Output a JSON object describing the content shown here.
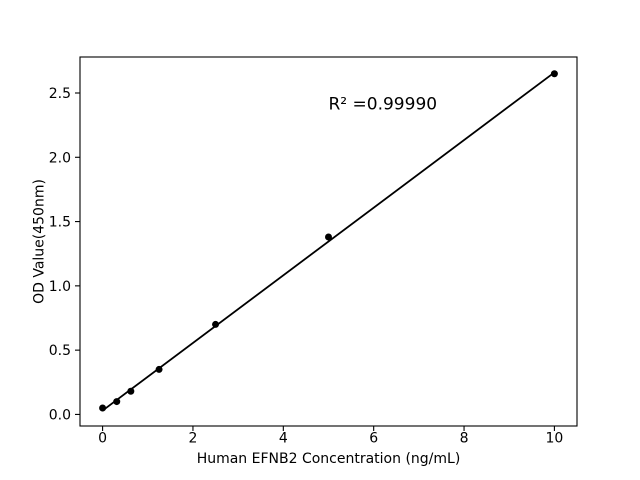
{
  "figure": {
    "background": "#ffffff"
  },
  "chart_data": {
    "type": "scatter",
    "title": "",
    "xlabel": "Human EFNB2 Concentration (ng/mL)",
    "ylabel": "OD Value(450nm)",
    "annotation": "R² =0.99990",
    "annotation_position": [
      5.0,
      2.37
    ],
    "x": [
      0,
      0.313,
      0.625,
      1.25,
      2.5,
      5,
      10
    ],
    "y": [
      0.05,
      0.1,
      0.18,
      0.35,
      0.7,
      1.38,
      2.65
    ],
    "fit_line": {
      "x": [
        0,
        10
      ],
      "y": [
        0.03,
        2.66
      ]
    },
    "xlim": [
      -0.5,
      10.5
    ],
    "ylim": [
      -0.09,
      2.78
    ],
    "xticks": [
      {
        "value": 0,
        "label": "0"
      },
      {
        "value": 2,
        "label": "2"
      },
      {
        "value": 4,
        "label": "4"
      },
      {
        "value": 6,
        "label": "6"
      },
      {
        "value": 8,
        "label": "8"
      },
      {
        "value": 10,
        "label": "10"
      }
    ],
    "yticks": [
      {
        "value": 0.0,
        "label": "0.0"
      },
      {
        "value": 0.5,
        "label": "0.5"
      },
      {
        "value": 1.0,
        "label": "1.0"
      },
      {
        "value": 1.5,
        "label": "1.5"
      },
      {
        "value": 2.0,
        "label": "2.0"
      },
      {
        "value": 2.5,
        "label": "2.5"
      }
    ],
    "grid": false,
    "legend": null,
    "marker": {
      "shape": "circle",
      "color": "#000000",
      "size": 7
    },
    "line": {
      "color": "#000000",
      "width": 1.8
    },
    "colors": {
      "spine": "#000000",
      "text": "#000000",
      "background": "#ffffff"
    }
  }
}
